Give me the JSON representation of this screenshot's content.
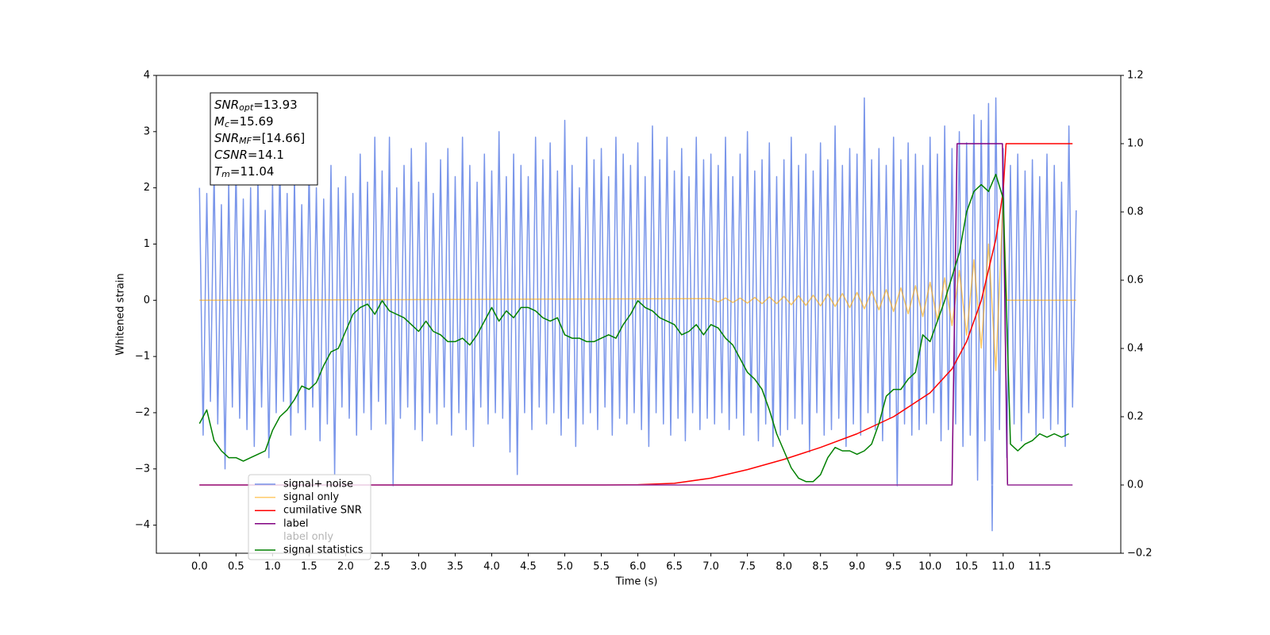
{
  "chart_data": {
    "type": "line",
    "xlabel": "Time (s)",
    "ylabel": "Whitened strain",
    "xlim": [
      -0.59,
      12.61
    ],
    "ylim": [
      -4.5,
      4
    ],
    "y2lim": [
      -0.2,
      1.2
    ],
    "xticks": [
      {
        "value": 0,
        "label": "0.0"
      },
      0.5,
      {
        "value": 1,
        "label": "1.0"
      },
      1.5,
      {
        "value": 2,
        "label": "2.0"
      },
      2.5,
      {
        "value": 3,
        "label": "3.0"
      },
      3.5,
      {
        "value": 4,
        "label": "4.0"
      },
      4.5,
      {
        "value": 5,
        "label": "5.0"
      },
      5.5,
      {
        "value": 6,
        "label": "6.0"
      },
      6.5,
      {
        "value": 7,
        "label": "7.0"
      },
      7.5,
      {
        "value": 8,
        "label": "8.0"
      },
      8.5,
      {
        "value": 9,
        "label": "9.0"
      },
      9.5,
      {
        "value": 10,
        "label": "10.0"
      },
      10.5,
      {
        "value": 11,
        "label": "11.0"
      },
      11.5
    ],
    "yticks": [
      {
        "value": -4,
        "label": "−4"
      },
      {
        "value": -3,
        "label": "−3"
      },
      {
        "value": -2,
        "label": "−2"
      },
      {
        "value": -1,
        "label": "−1"
      },
      0,
      1,
      2,
      3,
      4
    ],
    "y2ticks": [
      {
        "value": -0.2,
        "label": "−0.2"
      },
      {
        "value": 0,
        "label": "0.0"
      },
      0.2,
      0.4,
      0.6,
      0.8,
      {
        "value": 1,
        "label": "1.0"
      },
      1.2
    ],
    "legend": "lower left",
    "annotation": [
      {
        "text": "SNR",
        "sub": "opt",
        "rest": "=13.93"
      },
      {
        "text": "M",
        "sub": "c",
        "rest": "=15.69"
      },
      {
        "text": "SNR",
        "sub": "MF",
        "rest": "=[14.66]"
      },
      {
        "text": "CSNR",
        "rest": "=14.1"
      },
      {
        "text": "T",
        "sub": "m",
        "rest": "=11.04"
      }
    ],
    "series": [
      {
        "name": "signal+ noise",
        "color": "#4169e1",
        "alpha": 0.7,
        "x": [
          0,
          0.05,
          0.1,
          0.15,
          0.2,
          0.25,
          0.3,
          0.35,
          0.4,
          0.45,
          0.5,
          0.55,
          0.6,
          0.65,
          0.7,
          0.75,
          0.8,
          0.85,
          0.9,
          0.95,
          1,
          1.05,
          1.1,
          1.15,
          1.2,
          1.25,
          1.3,
          1.35,
          1.4,
          1.45,
          1.5,
          1.55,
          1.6,
          1.65,
          1.7,
          1.75,
          1.8,
          1.85,
          1.9,
          1.95,
          2,
          2.05,
          2.1,
          2.15,
          2.2,
          2.25,
          2.3,
          2.35,
          2.4,
          2.45,
          2.5,
          2.55,
          2.6,
          2.65,
          2.7,
          2.75,
          2.8,
          2.85,
          2.9,
          2.95,
          3,
          3.05,
          3.1,
          3.15,
          3.2,
          3.25,
          3.3,
          3.35,
          3.4,
          3.45,
          3.5,
          3.55,
          3.6,
          3.65,
          3.7,
          3.75,
          3.8,
          3.85,
          3.9,
          3.95,
          4,
          4.05,
          4.1,
          4.15,
          4.2,
          4.25,
          4.3,
          4.35,
          4.4,
          4.45,
          4.5,
          4.55,
          4.6,
          4.65,
          4.7,
          4.75,
          4.8,
          4.85,
          4.9,
          4.95,
          5,
          5.05,
          5.1,
          5.15,
          5.2,
          5.25,
          5.3,
          5.35,
          5.4,
          5.45,
          5.5,
          5.55,
          5.6,
          5.65,
          5.7,
          5.75,
          5.8,
          5.85,
          5.9,
          5.95,
          6,
          6.05,
          6.1,
          6.15,
          6.2,
          6.25,
          6.3,
          6.35,
          6.4,
          6.45,
          6.5,
          6.55,
          6.6,
          6.65,
          6.7,
          6.75,
          6.8,
          6.85,
          6.9,
          6.95,
          7,
          7.05,
          7.1,
          7.15,
          7.2,
          7.25,
          7.3,
          7.35,
          7.4,
          7.45,
          7.5,
          7.55,
          7.6,
          7.65,
          7.7,
          7.75,
          7.8,
          7.85,
          7.9,
          7.95,
          8,
          8.05,
          8.1,
          8.15,
          8.2,
          8.25,
          8.3,
          8.35,
          8.4,
          8.45,
          8.5,
          8.55,
          8.6,
          8.65,
          8.7,
          8.75,
          8.8,
          8.85,
          8.9,
          8.95,
          9,
          9.05,
          9.1,
          9.15,
          9.2,
          9.25,
          9.3,
          9.35,
          9.4,
          9.45,
          9.5,
          9.55,
          9.6,
          9.65,
          9.7,
          9.75,
          9.8,
          9.85,
          9.9,
          9.95,
          10,
          10.05,
          10.1,
          10.15,
          10.2,
          10.25,
          10.3,
          10.35,
          10.4,
          10.45,
          10.5,
          10.55,
          10.6,
          10.65,
          10.7,
          10.75,
          10.8,
          10.85,
          10.9,
          10.95,
          11,
          11.05,
          11.1,
          11.15,
          11.2,
          11.25,
          11.3,
          11.35,
          11.4,
          11.45,
          11.5,
          11.55,
          11.6,
          11.65,
          11.7,
          11.75,
          11.8,
          11.85,
          11.9,
          11.95,
          12
        ],
        "values": [
          2.0,
          -2.4,
          1.9,
          -1.8,
          2.3,
          -2.2,
          1.7,
          -3.0,
          2.1,
          -1.9,
          2.4,
          -2.1,
          1.8,
          -2.3,
          2.0,
          -2.6,
          2.2,
          -1.9,
          1.6,
          -2.8,
          2.1,
          -2.0,
          2.5,
          -1.8,
          1.9,
          -2.4,
          2.2,
          -2.0,
          1.7,
          -2.3,
          2.4,
          -1.9,
          2.0,
          -2.5,
          1.8,
          -2.2,
          2.4,
          -3.1,
          2.0,
          -1.9,
          2.2,
          -2.1,
          1.9,
          -2.4,
          2.6,
          -2.0,
          2.1,
          -2.3,
          2.9,
          -1.8,
          2.3,
          -2.2,
          2.9,
          -3.3,
          2.0,
          -2.1,
          2.4,
          -1.9,
          2.7,
          -2.3,
          2.1,
          -2.5,
          2.8,
          -2.0,
          1.9,
          -2.2,
          2.5,
          -1.9,
          2.7,
          -2.4,
          2.2,
          -2.0,
          2.9,
          -2.3,
          2.4,
          -2.6,
          2.1,
          -1.9,
          2.6,
          -2.2,
          2.3,
          -2.0,
          3.0,
          -2.1,
          2.2,
          -2.7,
          2.6,
          -3.1,
          2.4,
          -2.0,
          2.2,
          -2.3,
          2.9,
          -1.9,
          2.5,
          -2.2,
          2.8,
          -2.0,
          2.3,
          -2.4,
          3.2,
          -2.1,
          2.4,
          -2.6,
          2.0,
          -2.2,
          2.9,
          -2.0,
          2.5,
          -2.3,
          2.7,
          -1.9,
          2.2,
          -2.4,
          2.9,
          -2.1,
          2.6,
          -2.2,
          2.4,
          -2.0,
          2.8,
          -2.3,
          2.2,
          -2.6,
          3.1,
          -2.0,
          2.5,
          -2.2,
          2.9,
          -2.4,
          2.3,
          -2.1,
          2.7,
          -2.5,
          2.2,
          -2.0,
          2.9,
          -2.3,
          2.5,
          -2.1,
          2.6,
          -2.2,
          2.4,
          -2.0,
          2.9,
          -2.3,
          2.2,
          -2.1,
          2.6,
          -2.4,
          3.0,
          -2.0,
          2.3,
          -2.5,
          2.5,
          -2.2,
          2.8,
          -2.6,
          2.2,
          -2.4,
          2.5,
          -2.3,
          2.9,
          -2.1,
          2.4,
          -2.2,
          2.6,
          -2.7,
          2.3,
          -2.0,
          2.8,
          -2.4,
          2.5,
          -2.3,
          3.1,
          -2.1,
          2.4,
          -2.6,
          2.7,
          -2.2,
          2.6,
          -2.4,
          3.6,
          -2.0,
          2.5,
          -2.3,
          2.7,
          -2.5,
          2.4,
          -2.1,
          2.9,
          -3.3,
          2.5,
          -2.2,
          2.8,
          -2.4,
          2.6,
          -2.3,
          2.4,
          -2.2,
          2.9,
          -2.0,
          2.6,
          -2.5,
          3.1,
          -2.3,
          2.7,
          -2.2,
          3.0,
          -2.6,
          2.8,
          -2.4,
          3.3,
          -3.2,
          3.2,
          -2.5,
          3.5,
          -4.1,
          3.6,
          -2.3,
          2.7,
          -2.8,
          2.4,
          -2.2,
          2.6,
          -2.5,
          2.3,
          -2.0,
          2.5,
          -2.4,
          2.2,
          -2.1,
          2.6,
          -2.3,
          2.4,
          -2.2,
          2.1,
          -2.6,
          3.1,
          -1.9,
          1.6
        ]
      },
      {
        "name": "signal only",
        "color": "#ffa500",
        "alpha": 0.6,
        "x": [
          0,
          7,
          7.1,
          7.2,
          7.3,
          7.4,
          7.5,
          7.6,
          7.7,
          7.8,
          7.9,
          8,
          8.1,
          8.2,
          8.3,
          8.4,
          8.5,
          8.6,
          8.7,
          8.8,
          8.9,
          9,
          9.1,
          9.2,
          9.3,
          9.4,
          9.5,
          9.6,
          9.7,
          9.8,
          9.9,
          10,
          10.1,
          10.2,
          10.3,
          10.4,
          10.5,
          10.6,
          10.7,
          10.8,
          10.9,
          11,
          11.05,
          12
        ],
        "values": [
          0,
          0.03,
          -0.03,
          0.04,
          -0.04,
          0.04,
          -0.05,
          0.05,
          -0.06,
          0.06,
          -0.06,
          0.07,
          -0.08,
          0.08,
          -0.09,
          0.09,
          -0.1,
          0.11,
          -0.11,
          0.12,
          -0.13,
          0.14,
          -0.15,
          0.16,
          -0.17,
          0.19,
          -0.2,
          0.22,
          -0.24,
          0.26,
          -0.29,
          0.32,
          -0.36,
          0.4,
          -0.45,
          0.53,
          -0.62,
          0.72,
          -0.85,
          1.0,
          -1.25,
          1.8,
          0,
          0
        ]
      },
      {
        "name": "cumilative SNR",
        "color": "#ff0000",
        "alpha": 1,
        "axis": "y2",
        "x": [
          0,
          5.5,
          6,
          6.5,
          7,
          7.5,
          8,
          8.5,
          9,
          9.5,
          10,
          10.3,
          10.5,
          10.7,
          10.9,
          11,
          11.04,
          11.95
        ],
        "values": [
          0,
          0,
          0.001,
          0.005,
          0.02,
          0.045,
          0.075,
          0.11,
          0.15,
          0.2,
          0.27,
          0.34,
          0.42,
          0.54,
          0.72,
          0.86,
          1,
          1
        ]
      },
      {
        "name": "label",
        "color": "#800080",
        "alpha": 1,
        "axis": "y2",
        "x": [
          0,
          10.3,
          10.37,
          10.99,
          11.06,
          11.95
        ],
        "values": [
          0,
          0,
          1,
          1,
          0,
          0
        ]
      },
      {
        "name": "label only",
        "color": "#ffffff",
        "alpha": 0.2,
        "axis": "y2",
        "x": [
          0,
          11.95
        ],
        "values": [
          0,
          0
        ]
      },
      {
        "name": "signal statistics",
        "color": "#008000",
        "alpha": 1,
        "axis": "y2",
        "x": [
          0,
          0.1,
          0.2,
          0.3,
          0.4,
          0.5,
          0.6,
          0.7,
          0.8,
          0.9,
          1,
          1.1,
          1.2,
          1.3,
          1.4,
          1.5,
          1.6,
          1.7,
          1.8,
          1.9,
          2,
          2.1,
          2.2,
          2.3,
          2.4,
          2.5,
          2.6,
          2.7,
          2.8,
          2.9,
          3,
          3.1,
          3.2,
          3.3,
          3.4,
          3.5,
          3.6,
          3.7,
          3.8,
          3.9,
          4,
          4.1,
          4.2,
          4.3,
          4.4,
          4.5,
          4.6,
          4.7,
          4.8,
          4.9,
          5,
          5.1,
          5.2,
          5.3,
          5.4,
          5.5,
          5.6,
          5.7,
          5.8,
          5.9,
          6,
          6.1,
          6.2,
          6.3,
          6.4,
          6.5,
          6.6,
          6.7,
          6.8,
          6.9,
          7,
          7.1,
          7.2,
          7.3,
          7.4,
          7.5,
          7.6,
          7.7,
          7.8,
          7.9,
          8,
          8.1,
          8.2,
          8.3,
          8.4,
          8.5,
          8.6,
          8.7,
          8.8,
          8.9,
          9,
          9.1,
          9.2,
          9.3,
          9.4,
          9.5,
          9.6,
          9.7,
          9.8,
          9.9,
          10,
          10.1,
          10.2,
          10.3,
          10.4,
          10.5,
          10.6,
          10.7,
          10.8,
          10.9,
          11,
          11.1,
          11.2,
          11.3,
          11.4,
          11.5,
          11.6,
          11.7,
          11.8,
          11.9
        ],
        "values": [
          0.18,
          0.22,
          0.13,
          0.1,
          0.08,
          0.08,
          0.07,
          0.08,
          0.09,
          0.1,
          0.16,
          0.2,
          0.22,
          0.25,
          0.29,
          0.28,
          0.3,
          0.35,
          0.39,
          0.4,
          0.45,
          0.5,
          0.52,
          0.53,
          0.5,
          0.54,
          0.51,
          0.5,
          0.49,
          0.47,
          0.45,
          0.48,
          0.45,
          0.44,
          0.42,
          0.42,
          0.43,
          0.41,
          0.44,
          0.48,
          0.52,
          0.48,
          0.51,
          0.49,
          0.52,
          0.52,
          0.51,
          0.49,
          0.48,
          0.49,
          0.44,
          0.43,
          0.43,
          0.42,
          0.42,
          0.43,
          0.44,
          0.43,
          0.47,
          0.5,
          0.54,
          0.52,
          0.51,
          0.49,
          0.48,
          0.47,
          0.44,
          0.45,
          0.47,
          0.44,
          0.47,
          0.46,
          0.43,
          0.41,
          0.37,
          0.33,
          0.31,
          0.28,
          0.22,
          0.15,
          0.1,
          0.05,
          0.02,
          0.01,
          0.01,
          0.03,
          0.08,
          0.11,
          0.1,
          0.1,
          0.09,
          0.1,
          0.12,
          0.18,
          0.26,
          0.28,
          0.28,
          0.31,
          0.33,
          0.44,
          0.42,
          0.48,
          0.54,
          0.61,
          0.68,
          0.8,
          0.86,
          0.88,
          0.86,
          0.91,
          0.84,
          0.12,
          0.1,
          0.12,
          0.13,
          0.15,
          0.14,
          0.15,
          0.14,
          0.15
        ]
      }
    ]
  }
}
